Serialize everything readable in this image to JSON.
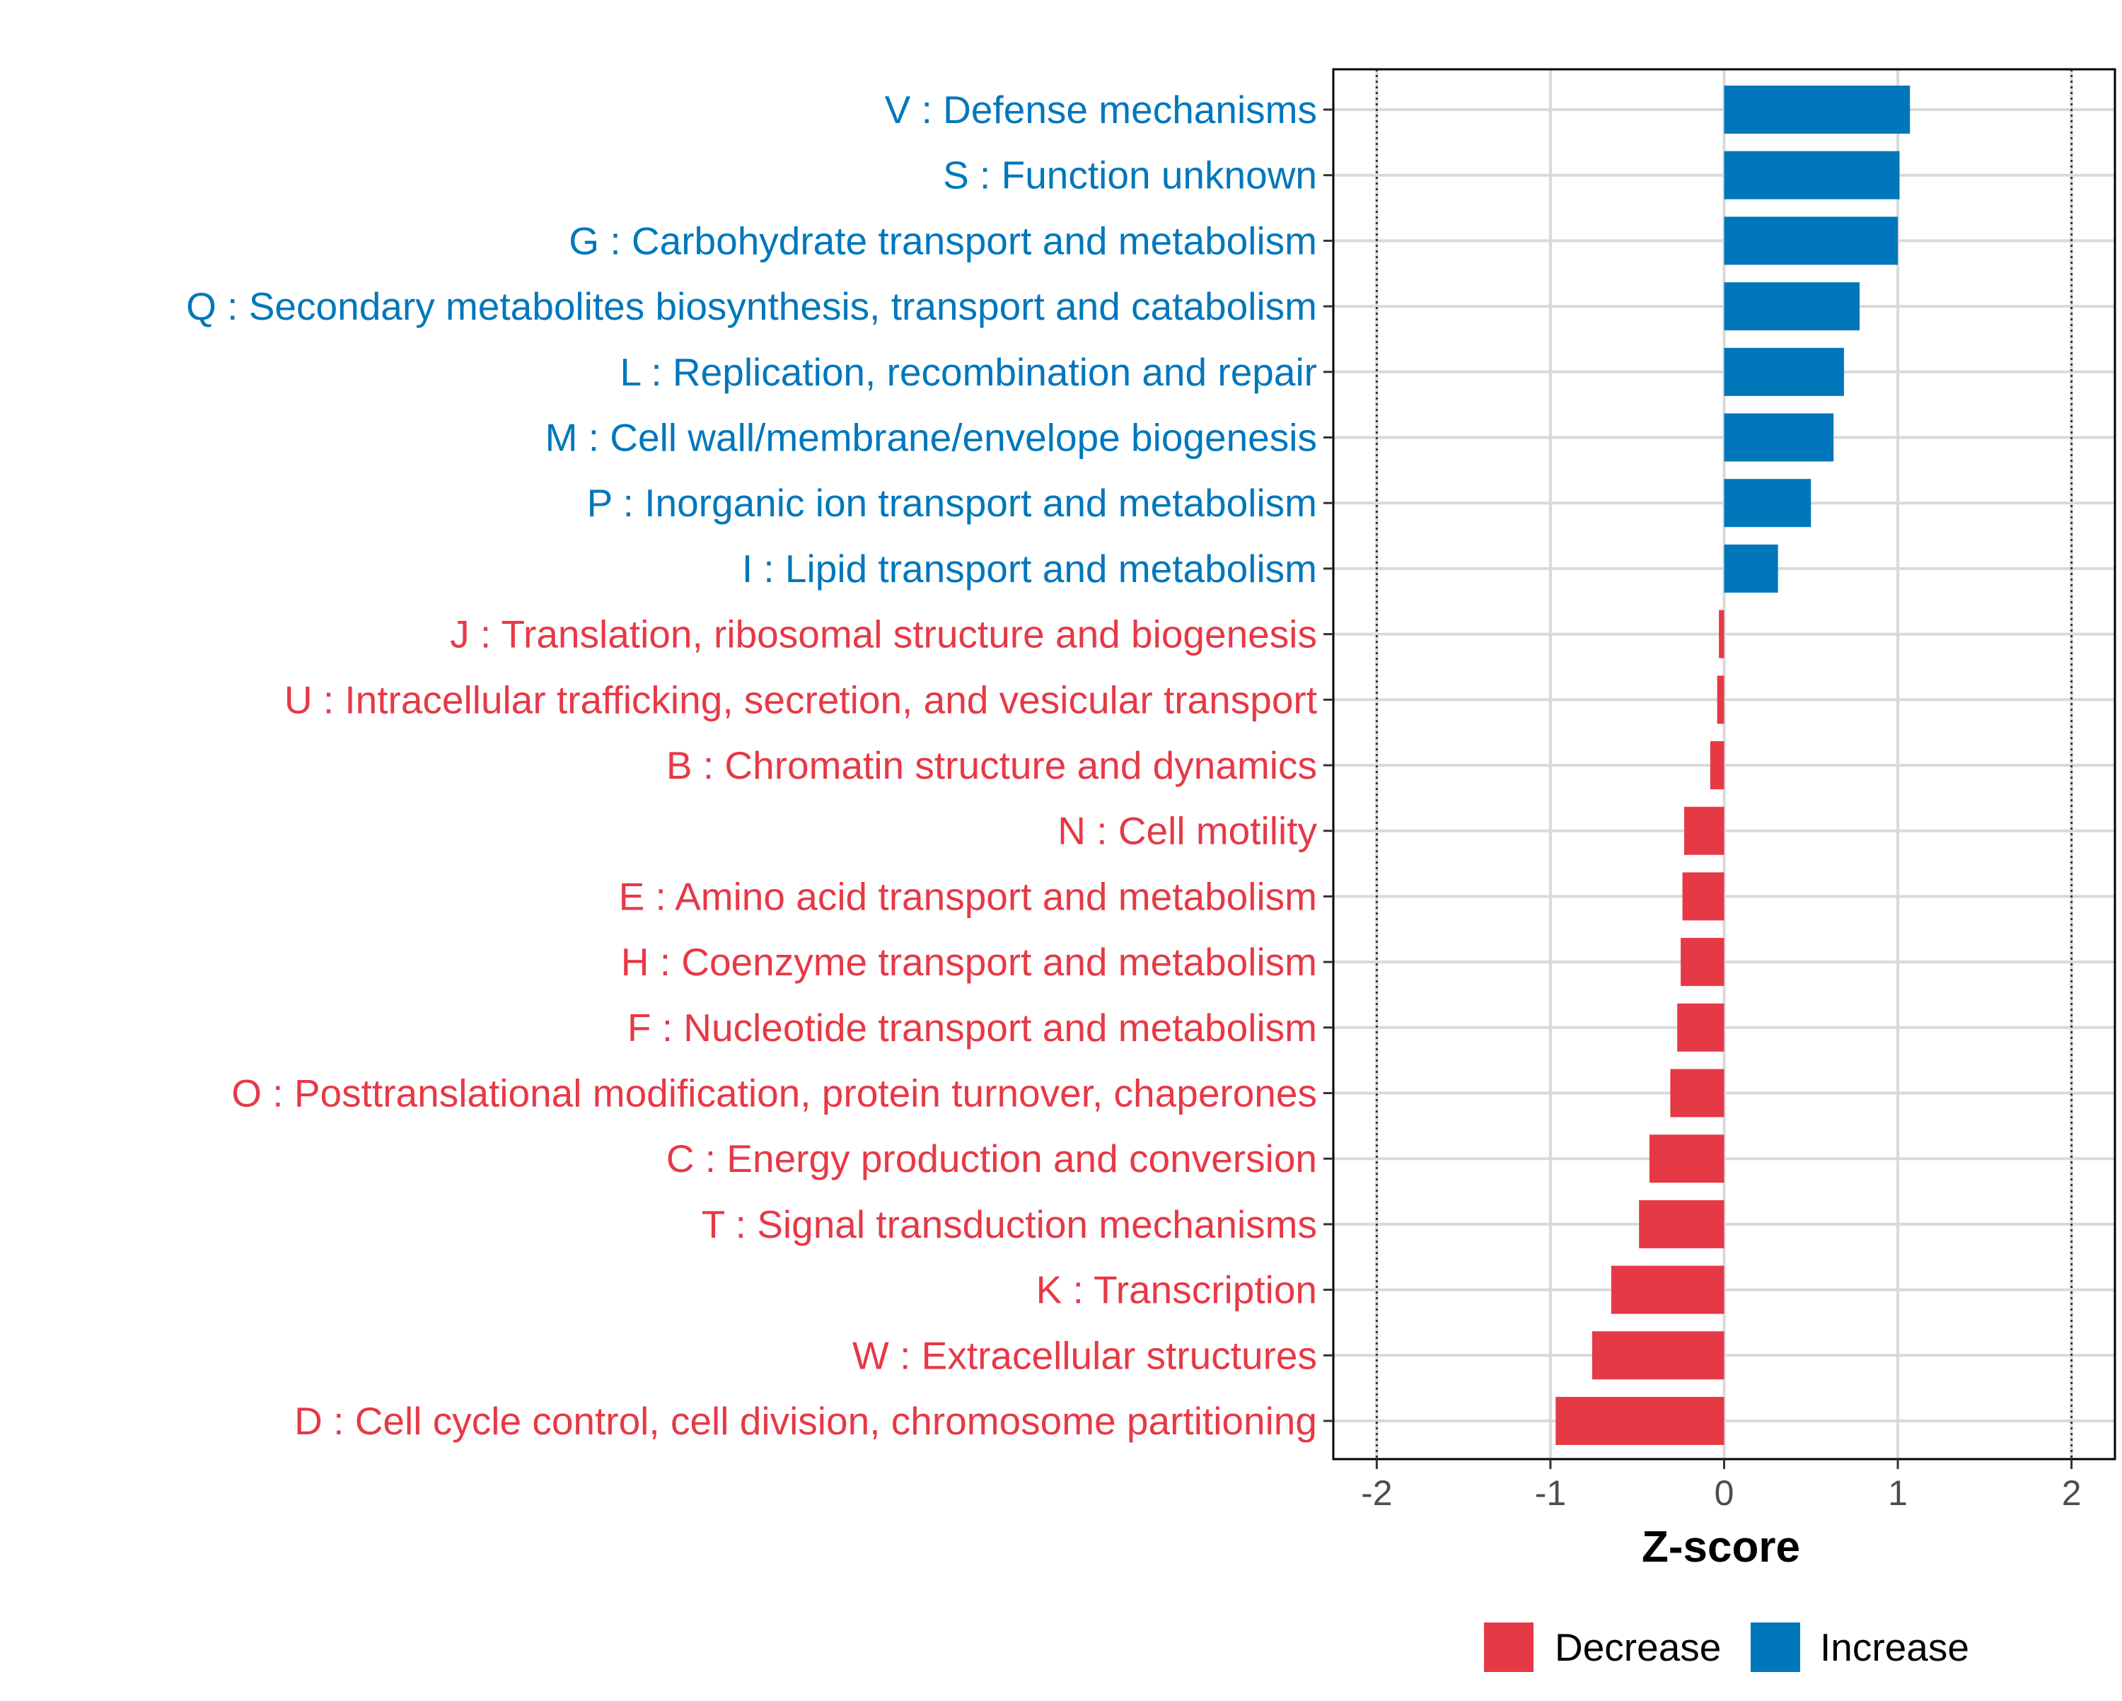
{
  "chart_data": {
    "type": "bar",
    "orientation": "horizontal",
    "title": "",
    "xlabel": "Z-score",
    "ylabel": "",
    "xlim": [
      -2.25,
      2.25
    ],
    "x_ticks": [
      -2,
      -1,
      0,
      1,
      2
    ],
    "x_tick_labels": [
      "-2",
      "-1",
      "0",
      "1",
      "2"
    ],
    "reference_lines": [
      -2,
      2
    ],
    "grid": true,
    "legend_position": "bottom",
    "colors": {
      "Increase": "#0077BB",
      "Decrease": "#E63946"
    },
    "legend": [
      {
        "label": "Decrease",
        "group": "Decrease"
      },
      {
        "label": "Increase",
        "group": "Increase"
      }
    ],
    "bars": [
      {
        "label": "V : Defense mechanisms",
        "value": 1.07,
        "group": "Increase"
      },
      {
        "label": "S : Function unknown",
        "value": 1.01,
        "group": "Increase"
      },
      {
        "label": "G : Carbohydrate transport and metabolism",
        "value": 1.0,
        "group": "Increase"
      },
      {
        "label": "Q : Secondary metabolites biosynthesis, transport and catabolism",
        "value": 0.78,
        "group": "Increase"
      },
      {
        "label": "L : Replication, recombination and repair",
        "value": 0.69,
        "group": "Increase"
      },
      {
        "label": "M : Cell wall/membrane/envelope biogenesis",
        "value": 0.63,
        "group": "Increase"
      },
      {
        "label": "P : Inorganic ion transport and metabolism",
        "value": 0.5,
        "group": "Increase"
      },
      {
        "label": "I : Lipid transport and metabolism",
        "value": 0.31,
        "group": "Increase"
      },
      {
        "label": "J : Translation, ribosomal structure and biogenesis",
        "value": -0.03,
        "group": "Decrease"
      },
      {
        "label": "U : Intracellular trafficking, secretion, and vesicular transport",
        "value": -0.04,
        "group": "Decrease"
      },
      {
        "label": "B : Chromatin structure and dynamics",
        "value": -0.08,
        "group": "Decrease"
      },
      {
        "label": "N : Cell motility",
        "value": -0.23,
        "group": "Decrease"
      },
      {
        "label": "E : Amino acid transport and metabolism",
        "value": -0.24,
        "group": "Decrease"
      },
      {
        "label": "H : Coenzyme transport and metabolism",
        "value": -0.25,
        "group": "Decrease"
      },
      {
        "label": "F : Nucleotide transport and metabolism",
        "value": -0.27,
        "group": "Decrease"
      },
      {
        "label": "O : Posttranslational modification, protein turnover, chaperones",
        "value": -0.31,
        "group": "Decrease"
      },
      {
        "label": "C : Energy production and conversion",
        "value": -0.43,
        "group": "Decrease"
      },
      {
        "label": "T : Signal transduction mechanisms",
        "value": -0.49,
        "group": "Decrease"
      },
      {
        "label": "K : Transcription",
        "value": -0.65,
        "group": "Decrease"
      },
      {
        "label": "W : Extracellular structures",
        "value": -0.76,
        "group": "Decrease"
      },
      {
        "label": "D : Cell cycle control, cell division, chromosome partitioning",
        "value": -0.97,
        "group": "Decrease"
      }
    ]
  }
}
